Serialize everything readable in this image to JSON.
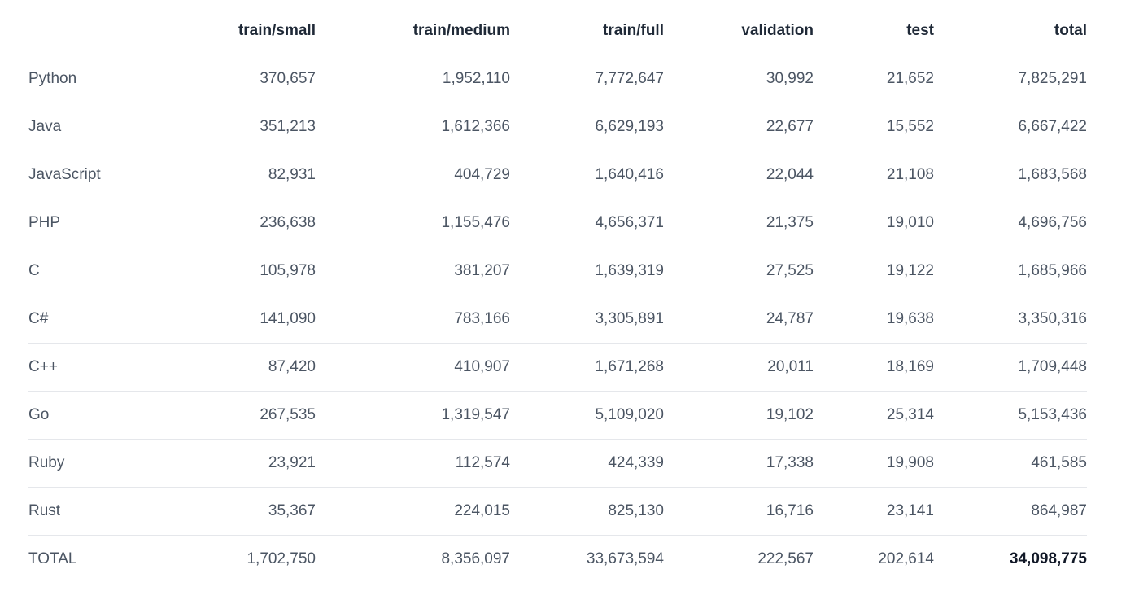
{
  "table": {
    "columns": [
      "",
      "train/small",
      "train/medium",
      "train/full",
      "validation",
      "test",
      "total"
    ],
    "rows": [
      {
        "language": "Python",
        "values": [
          "370,657",
          "1,952,110",
          "7,772,647",
          "30,992",
          "21,652",
          "7,825,291"
        ]
      },
      {
        "language": "Java",
        "values": [
          "351,213",
          "1,612,366",
          "6,629,193",
          "22,677",
          "15,552",
          "6,667,422"
        ]
      },
      {
        "language": "JavaScript",
        "values": [
          "82,931",
          "404,729",
          "1,640,416",
          "22,044",
          "21,108",
          "1,683,568"
        ]
      },
      {
        "language": "PHP",
        "values": [
          "236,638",
          "1,155,476",
          "4,656,371",
          "21,375",
          "19,010",
          "4,696,756"
        ]
      },
      {
        "language": "C",
        "values": [
          "105,978",
          "381,207",
          "1,639,319",
          "27,525",
          "19,122",
          "1,685,966"
        ]
      },
      {
        "language": "C#",
        "values": [
          "141,090",
          "783,166",
          "3,305,891",
          "24,787",
          "19,638",
          "3,350,316"
        ]
      },
      {
        "language": "C++",
        "values": [
          "87,420",
          "410,907",
          "1,671,268",
          "20,011",
          "18,169",
          "1,709,448"
        ]
      },
      {
        "language": "Go",
        "values": [
          "267,535",
          "1,319,547",
          "5,109,020",
          "19,102",
          "25,314",
          "5,153,436"
        ]
      },
      {
        "language": "Ruby",
        "values": [
          "23,921",
          "112,574",
          "424,339",
          "17,338",
          "19,908",
          "461,585"
        ]
      },
      {
        "language": "Rust",
        "values": [
          "35,367",
          "224,015",
          "825,130",
          "16,716",
          "23,141",
          "864,987"
        ]
      },
      {
        "language": "TOTAL",
        "values": [
          "1,702,750",
          "8,356,097",
          "33,673,594",
          "222,567",
          "202,614",
          "34,098,775"
        ]
      }
    ]
  }
}
